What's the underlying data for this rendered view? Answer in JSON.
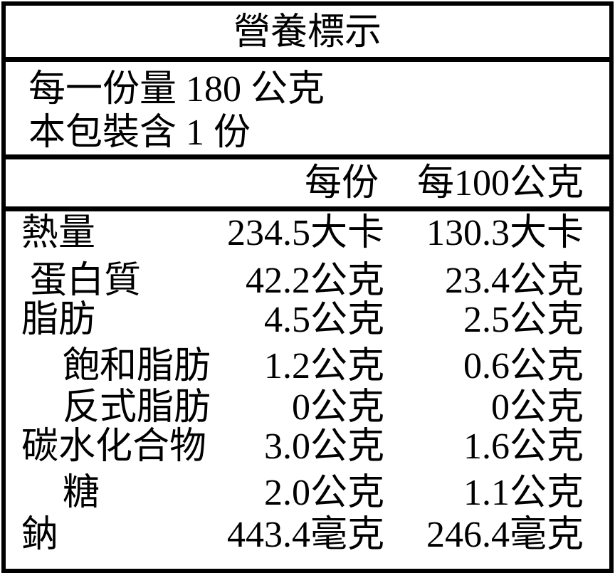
{
  "title": "營養標示",
  "serving": {
    "size": "每一份量 180 公克",
    "servings_per_package": "本包裝含 1 份"
  },
  "header": {
    "per_serving": "每份",
    "per_100g": "每100公克"
  },
  "rows": [
    {
      "label": "熱量",
      "per_serving": "234.5大卡",
      "per_100g": "130.3大卡"
    },
    {
      "label": "蛋白質",
      "per_serving": "42.2公克",
      "per_100g": "23.4公克"
    },
    {
      "label": "脂肪",
      "per_serving": "4.5公克",
      "per_100g": "2.5公克"
    },
    {
      "label": "飽和脂肪",
      "per_serving": "1.2公克",
      "per_100g": "0.6公克"
    },
    {
      "label": "反式脂肪",
      "per_serving": "0公克",
      "per_100g": "0公克"
    },
    {
      "label": "碳水化合物",
      "per_serving": "3.0公克",
      "per_100g": "1.6公克"
    },
    {
      "label": "糖",
      "per_serving": "2.0公克",
      "per_100g": "1.1公克"
    },
    {
      "label": "鈉",
      "per_serving": "443.4毫克",
      "per_100g": "246.4毫克"
    }
  ]
}
